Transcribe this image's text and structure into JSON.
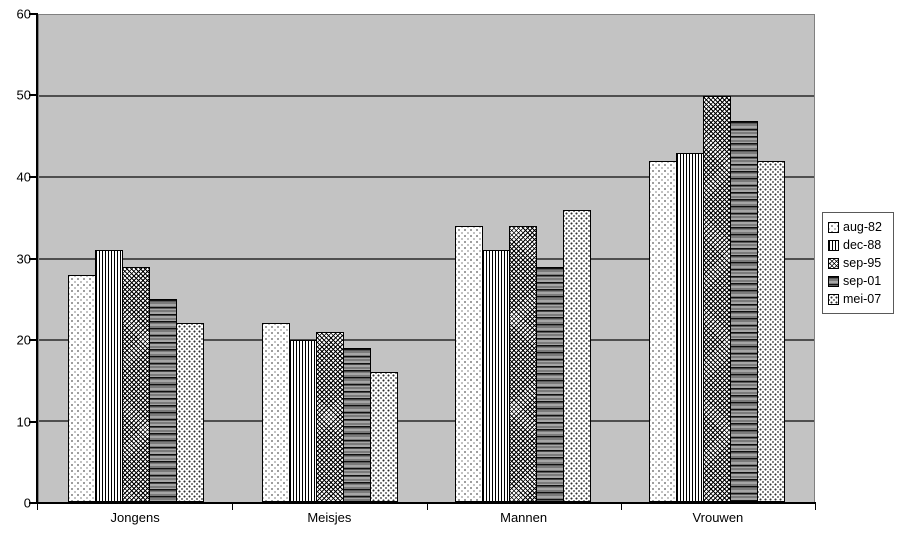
{
  "chart_data": {
    "type": "bar",
    "title": "",
    "xlabel": "",
    "ylabel": "",
    "categories": [
      "Jongens",
      "Meisjes",
      "Mannen",
      "Vrouwen"
    ],
    "series": [
      {
        "name": "aug-82",
        "pattern": "sparse-dots",
        "values": [
          28,
          22,
          34,
          42
        ]
      },
      {
        "name": "dec-88",
        "pattern": "vertical-lines",
        "values": [
          31,
          20,
          31,
          43
        ]
      },
      {
        "name": "sep-95",
        "pattern": "diagonal-crosshatch",
        "values": [
          29,
          21,
          34,
          50
        ]
      },
      {
        "name": "sep-01",
        "pattern": "dark-horizontal",
        "values": [
          25,
          19,
          29,
          47
        ]
      },
      {
        "name": "mei-07",
        "pattern": "dense-dots",
        "values": [
          22,
          16,
          36,
          42
        ]
      }
    ],
    "ylim": [
      0,
      60
    ],
    "yticks": [
      0,
      10,
      20,
      30,
      40,
      50,
      60
    ],
    "grid": true,
    "legend_position": "right",
    "plot_background": "#c3c3c3",
    "gridline_color": "#4f4f4f",
    "axis_color": "#000000"
  }
}
